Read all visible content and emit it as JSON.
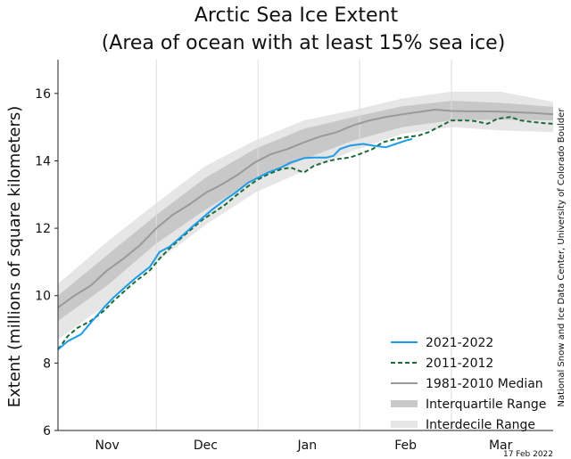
{
  "chart_data": {
    "type": "line",
    "title_line1": "Arctic Sea Ice Extent",
    "title_line2": "(Area of ocean with at least 15% sea ice)",
    "ylabel": "Extent (millions of square kilometers)",
    "xlabel": "",
    "ylim": [
      6,
      17
    ],
    "yticks": [
      6,
      8,
      10,
      12,
      14,
      16
    ],
    "xlim": [
      0,
      151
    ],
    "month_labels": [
      {
        "label": "Nov",
        "x": 15
      },
      {
        "label": "Dec",
        "x": 45
      },
      {
        "label": "Jan",
        "x": 76
      },
      {
        "label": "Feb",
        "x": 106
      },
      {
        "label": "Mar",
        "x": 135
      }
    ],
    "month_boundaries": [
      30,
      61,
      92,
      120
    ],
    "grid": "vertical month boundaries",
    "legend_position": "bottom-right",
    "credit": "National Snow and Ice Data Center, University of Colorado Boulder",
    "date_stamp": "17 Feb 2022",
    "colors": {
      "current": "#1f9be8",
      "previous": "#1b6b3a",
      "median": "#999999",
      "iqr": "#c8c8c8",
      "idr": "#e6e6e6"
    },
    "series": [
      {
        "name": "2021-2022",
        "style": "solid",
        "x": [
          0,
          3,
          7,
          10,
          14,
          17,
          21,
          24,
          28,
          31,
          34,
          37,
          41,
          44,
          47,
          51,
          54,
          58,
          61,
          64,
          68,
          71,
          75,
          78,
          82,
          84,
          86,
          89,
          93,
          96,
          100,
          103,
          106,
          108
        ],
        "y": [
          8.4,
          8.65,
          8.85,
          9.2,
          9.65,
          9.95,
          10.3,
          10.55,
          10.85,
          11.3,
          11.45,
          11.7,
          12.05,
          12.3,
          12.55,
          12.85,
          13.05,
          13.35,
          13.5,
          13.65,
          13.8,
          13.95,
          14.08,
          14.1,
          14.1,
          14.15,
          14.35,
          14.45,
          14.5,
          14.45,
          14.4,
          14.5,
          14.6,
          14.65
        ]
      },
      {
        "name": "2011-2012",
        "style": "dashed",
        "x": [
          0,
          3,
          6,
          10,
          14,
          17,
          21,
          24,
          28,
          31,
          34,
          38,
          41,
          44,
          48,
          51,
          54,
          58,
          61,
          64,
          68,
          71,
          75,
          78,
          82,
          85,
          89,
          92,
          96,
          99,
          103,
          106,
          110,
          113,
          116,
          120,
          124,
          127,
          131,
          134,
          138,
          141,
          145,
          148,
          151
        ],
        "y": [
          8.4,
          8.8,
          9.05,
          9.25,
          9.55,
          9.85,
          10.2,
          10.45,
          10.75,
          11.1,
          11.4,
          11.75,
          12.0,
          12.25,
          12.5,
          12.7,
          12.95,
          13.25,
          13.45,
          13.6,
          13.75,
          13.8,
          13.65,
          13.85,
          13.98,
          14.05,
          14.1,
          14.2,
          14.35,
          14.55,
          14.65,
          14.7,
          14.75,
          14.85,
          15.0,
          15.2,
          15.2,
          15.18,
          15.1,
          15.25,
          15.3,
          15.2,
          15.15,
          15.12,
          15.1
        ]
      },
      {
        "name": "1981-2010 Median",
        "style": "solid",
        "x": [
          0,
          5,
          10,
          15,
          20,
          25,
          30,
          35,
          40,
          45,
          50,
          55,
          60,
          65,
          70,
          75,
          80,
          85,
          90,
          95,
          100,
          105,
          110,
          115,
          120,
          125,
          130,
          135,
          140,
          145,
          151
        ],
        "y": [
          9.65,
          10.0,
          10.3,
          10.75,
          11.1,
          11.5,
          12.0,
          12.4,
          12.7,
          13.05,
          13.3,
          13.6,
          13.95,
          14.2,
          14.35,
          14.55,
          14.72,
          14.85,
          15.05,
          15.2,
          15.3,
          15.38,
          15.45,
          15.52,
          15.48,
          15.47,
          15.47,
          15.46,
          15.44,
          15.42,
          15.38
        ]
      },
      {
        "name": "Interquartile Range",
        "style": "band",
        "x": [
          0,
          15,
          30,
          45,
          60,
          75,
          90,
          105,
          120,
          135,
          151
        ],
        "lower": [
          9.25,
          10.3,
          11.55,
          12.55,
          13.45,
          14.05,
          14.6,
          15.0,
          15.2,
          15.22,
          15.2
        ],
        "upper": [
          10.0,
          11.2,
          12.4,
          13.5,
          14.35,
          14.95,
          15.3,
          15.62,
          15.78,
          15.72,
          15.6
        ]
      },
      {
        "name": "Interdecile Range",
        "style": "band",
        "x": [
          0,
          15,
          30,
          45,
          60,
          75,
          90,
          105,
          120,
          135,
          151
        ],
        "lower": [
          8.7,
          9.75,
          11.0,
          12.1,
          13.05,
          13.7,
          14.3,
          14.8,
          15.0,
          14.9,
          14.85
        ],
        "upper": [
          10.35,
          11.6,
          12.75,
          13.85,
          14.6,
          15.2,
          15.5,
          15.85,
          16.05,
          16.05,
          15.75
        ]
      }
    ]
  }
}
